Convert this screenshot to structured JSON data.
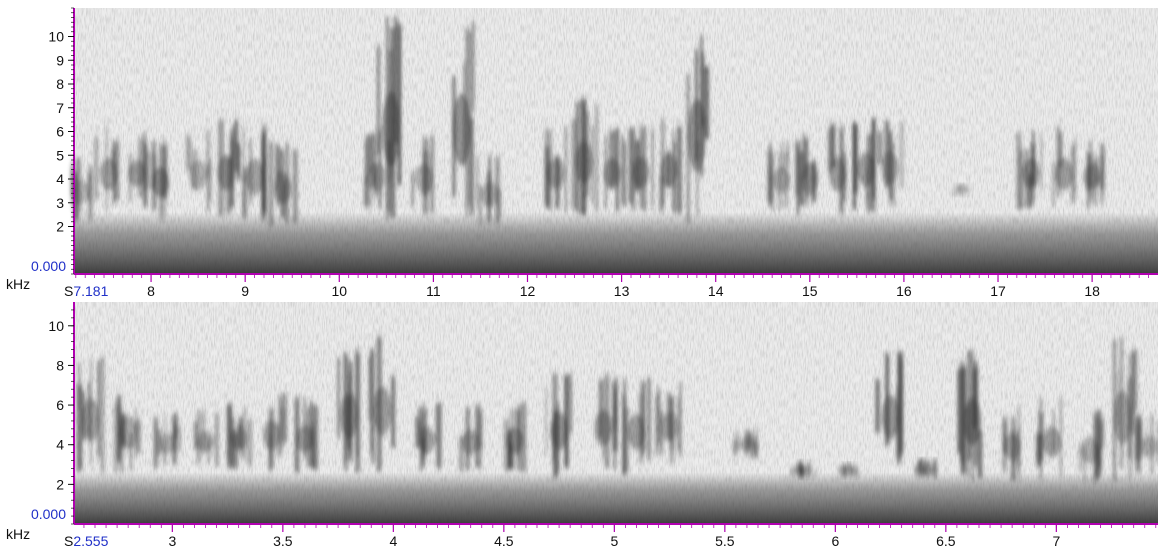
{
  "chart_data": [
    {
      "type": "heatmap",
      "kind": "spectrogram",
      "xlim": [
        7.181,
        18.7
      ],
      "ylim": [
        0,
        11.2
      ],
      "x_start_label": "S7.181",
      "y_origin_label": "0.000",
      "y_unit_label": "kHz",
      "y_ticks": [
        2,
        3,
        4,
        5,
        6,
        7,
        8,
        9,
        10
      ],
      "x_ticks": [
        8,
        9,
        10,
        11,
        12,
        13,
        14,
        15,
        16,
        17,
        18
      ],
      "calls": [
        {
          "t": 7.25,
          "f_low": 2.2,
          "f_high": 5.0,
          "intensity": 0.5
        },
        {
          "t": 7.55,
          "f_low": 2.5,
          "f_high": 6.3,
          "intensity": 0.7
        },
        {
          "t": 7.85,
          "f_low": 2.8,
          "f_high": 6.0,
          "intensity": 0.75
        },
        {
          "t": 8.1,
          "f_low": 2.3,
          "f_high": 5.8,
          "intensity": 0.8
        },
        {
          "t": 8.5,
          "f_low": 2.6,
          "f_high": 6.1,
          "intensity": 0.6
        },
        {
          "t": 8.8,
          "f_low": 2.4,
          "f_high": 6.6,
          "intensity": 0.75
        },
        {
          "t": 9.1,
          "f_low": 2.2,
          "f_high": 6.4,
          "intensity": 0.7
        },
        {
          "t": 9.4,
          "f_low": 2.0,
          "f_high": 5.6,
          "intensity": 0.75
        },
        {
          "t": 10.4,
          "f_low": 2.5,
          "f_high": 6.0,
          "intensity": 0.6
        },
        {
          "t": 10.55,
          "f_low": 2.2,
          "f_high": 10.9,
          "intensity": 0.85
        },
        {
          "t": 10.9,
          "f_low": 2.5,
          "f_high": 5.9,
          "intensity": 0.6
        },
        {
          "t": 11.3,
          "f_low": 2.3,
          "f_high": 10.7,
          "intensity": 0.85
        },
        {
          "t": 11.6,
          "f_low": 2.0,
          "f_high": 5.0,
          "intensity": 0.6
        },
        {
          "t": 12.3,
          "f_low": 2.6,
          "f_high": 6.2,
          "intensity": 0.7
        },
        {
          "t": 12.6,
          "f_low": 2.5,
          "f_high": 7.4,
          "intensity": 0.75
        },
        {
          "t": 12.9,
          "f_low": 2.6,
          "f_high": 6.2,
          "intensity": 0.7
        },
        {
          "t": 13.2,
          "f_low": 2.6,
          "f_high": 6.3,
          "intensity": 0.7
        },
        {
          "t": 13.5,
          "f_low": 2.5,
          "f_high": 6.6,
          "intensity": 0.75
        },
        {
          "t": 13.8,
          "f_low": 2.0,
          "f_high": 10.5,
          "intensity": 0.85
        },
        {
          "t": 14.7,
          "f_low": 2.6,
          "f_high": 5.6,
          "intensity": 0.6
        },
        {
          "t": 15.0,
          "f_low": 2.4,
          "f_high": 6.0,
          "intensity": 0.7
        },
        {
          "t": 15.3,
          "f_low": 2.4,
          "f_high": 6.4,
          "intensity": 0.75
        },
        {
          "t": 15.6,
          "f_low": 2.6,
          "f_high": 6.6,
          "intensity": 0.75
        },
        {
          "t": 15.85,
          "f_low": 2.8,
          "f_high": 6.5,
          "intensity": 0.6
        },
        {
          "t": 16.6,
          "f_low": 3.4,
          "f_high": 3.7,
          "intensity": 0.35
        },
        {
          "t": 17.35,
          "f_low": 2.6,
          "f_high": 6.2,
          "intensity": 0.75
        },
        {
          "t": 17.7,
          "f_low": 2.5,
          "f_high": 6.3,
          "intensity": 0.75
        },
        {
          "t": 18.0,
          "f_low": 2.7,
          "f_high": 5.8,
          "intensity": 0.7
        }
      ]
    },
    {
      "type": "heatmap",
      "kind": "spectrogram",
      "xlim": [
        2.555,
        7.46
      ],
      "ylim": [
        0,
        11.2
      ],
      "x_start_label": "S2.555",
      "y_origin_label": "0.000",
      "y_unit_label": "kHz",
      "y_ticks": [
        2,
        4,
        6,
        8,
        10
      ],
      "x_ticks": [
        3,
        3.5,
        4,
        4.5,
        5,
        5.5,
        6,
        6.5,
        7
      ],
      "calls": [
        {
          "t": 2.63,
          "f_low": 2.5,
          "f_high": 8.6,
          "intensity": 0.7
        },
        {
          "t": 2.8,
          "f_low": 2.5,
          "f_high": 7.2,
          "intensity": 0.65
        },
        {
          "t": 2.98,
          "f_low": 2.8,
          "f_high": 5.6,
          "intensity": 0.6
        },
        {
          "t": 3.15,
          "f_low": 2.8,
          "f_high": 5.8,
          "intensity": 0.65
        },
        {
          "t": 3.3,
          "f_low": 2.8,
          "f_high": 6.2,
          "intensity": 0.65
        },
        {
          "t": 3.45,
          "f_low": 2.6,
          "f_high": 6.8,
          "intensity": 0.7
        },
        {
          "t": 3.6,
          "f_low": 2.6,
          "f_high": 6.4,
          "intensity": 0.7
        },
        {
          "t": 3.8,
          "f_low": 2.6,
          "f_high": 9.0,
          "intensity": 0.75
        },
        {
          "t": 3.95,
          "f_low": 2.6,
          "f_high": 9.5,
          "intensity": 0.75
        },
        {
          "t": 4.15,
          "f_low": 2.6,
          "f_high": 6.2,
          "intensity": 0.7
        },
        {
          "t": 4.35,
          "f_low": 2.6,
          "f_high": 6.0,
          "intensity": 0.7
        },
        {
          "t": 4.55,
          "f_low": 2.6,
          "f_high": 6.2,
          "intensity": 0.7
        },
        {
          "t": 4.75,
          "f_low": 2.3,
          "f_high": 7.6,
          "intensity": 0.8
        },
        {
          "t": 4.95,
          "f_low": 2.6,
          "f_high": 7.6,
          "intensity": 0.75
        },
        {
          "t": 5.1,
          "f_low": 2.4,
          "f_high": 7.4,
          "intensity": 0.75
        },
        {
          "t": 5.25,
          "f_low": 3.0,
          "f_high": 7.2,
          "intensity": 0.6
        },
        {
          "t": 5.6,
          "f_low": 3.2,
          "f_high": 5.0,
          "intensity": 0.55
        },
        {
          "t": 5.85,
          "f_low": 2.3,
          "f_high": 3.2,
          "intensity": 0.65
        },
        {
          "t": 6.05,
          "f_low": 2.3,
          "f_high": 3.2,
          "intensity": 0.65
        },
        {
          "t": 6.25,
          "f_low": 2.6,
          "f_high": 8.8,
          "intensity": 0.8
        },
        {
          "t": 6.42,
          "f_low": 2.3,
          "f_high": 3.3,
          "intensity": 0.65
        },
        {
          "t": 6.62,
          "f_low": 2.2,
          "f_high": 8.8,
          "intensity": 0.85
        },
        {
          "t": 6.8,
          "f_low": 2.2,
          "f_high": 6.0,
          "intensity": 0.65
        },
        {
          "t": 6.98,
          "f_low": 2.2,
          "f_high": 6.5,
          "intensity": 0.75
        },
        {
          "t": 7.15,
          "f_low": 2.0,
          "f_high": 5.8,
          "intensity": 0.6
        },
        {
          "t": 7.3,
          "f_low": 2.0,
          "f_high": 9.5,
          "intensity": 0.65
        },
        {
          "t": 7.42,
          "f_low": 2.5,
          "f_high": 5.6,
          "intensity": 0.55
        }
      ]
    }
  ]
}
